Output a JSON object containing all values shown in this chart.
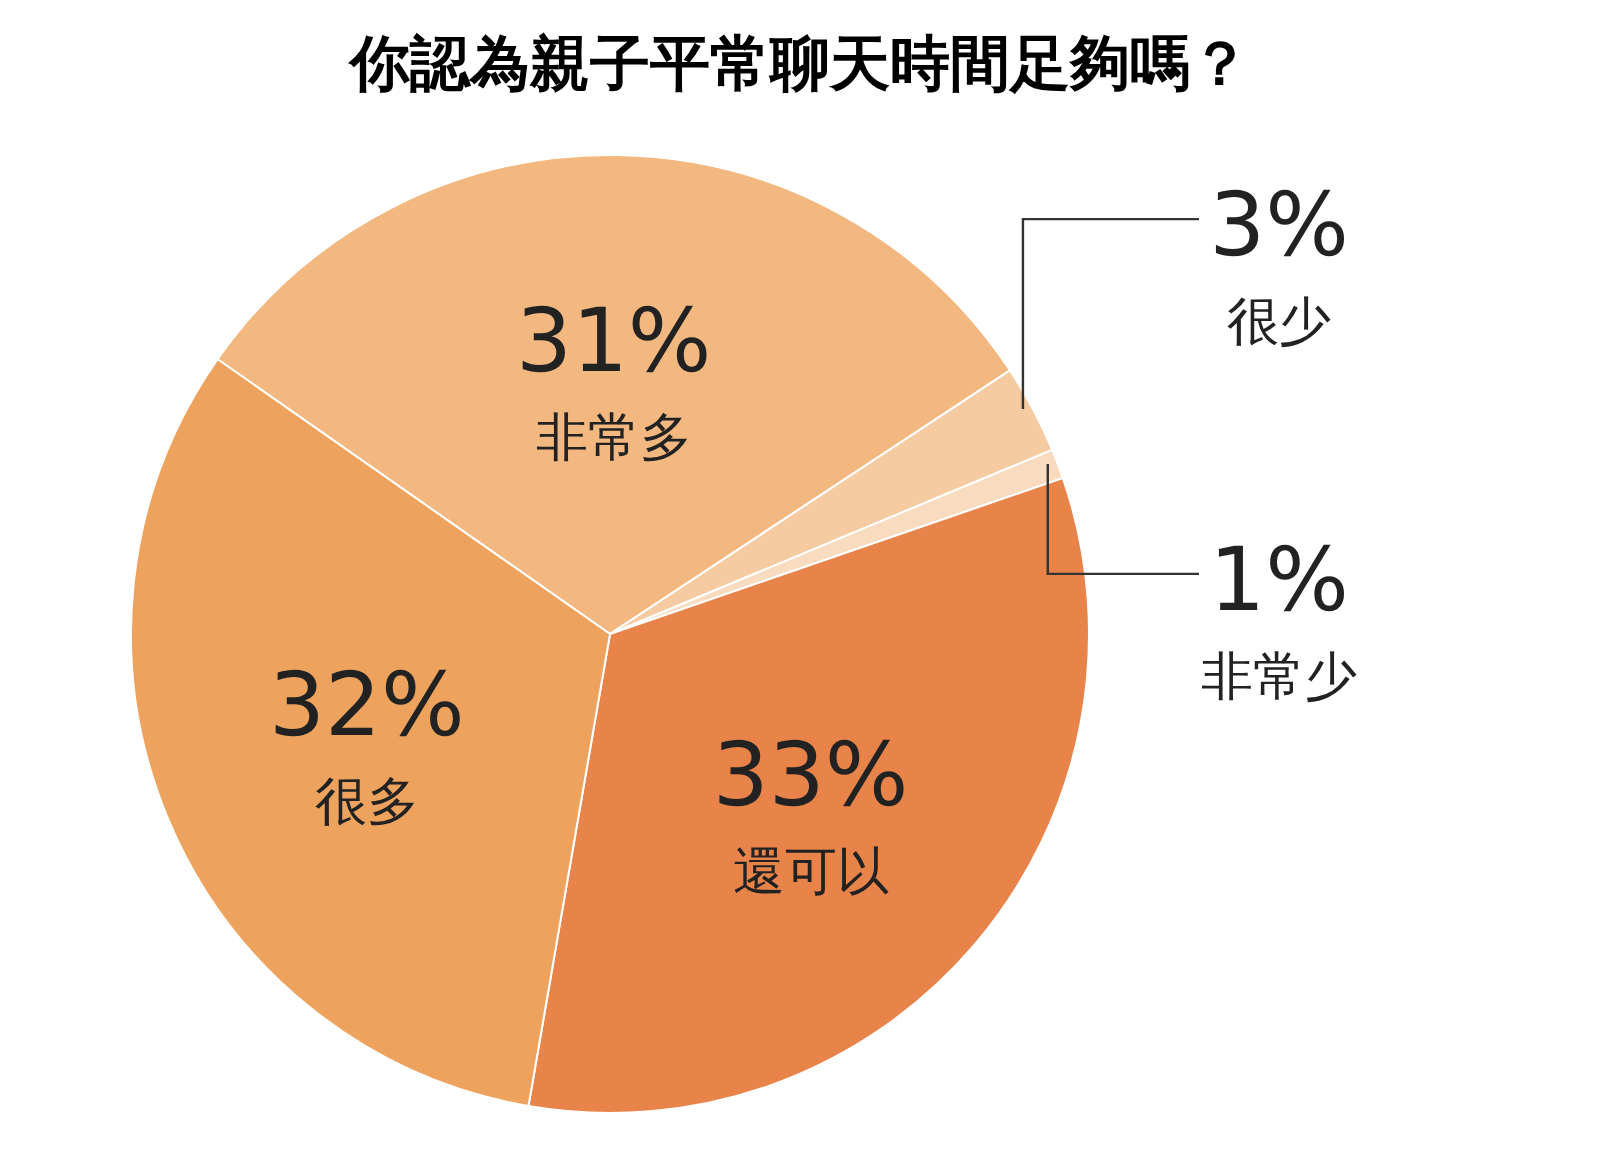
{
  "chart_data": {
    "type": "pie",
    "title": "你認為親子平常聊天時間足夠嗎？",
    "categories": [
      "非常多",
      "很少",
      "非常少",
      "還可以",
      "很多"
    ],
    "values": [
      31,
      3,
      1,
      33,
      32
    ],
    "value_labels": [
      "31%",
      "3%",
      "1%",
      "33%",
      "32%"
    ],
    "colors": [
      "#f3b880",
      "#f6cba2",
      "#f9dcc0",
      "#e8834a",
      "#eda35d"
    ],
    "legend": false
  }
}
